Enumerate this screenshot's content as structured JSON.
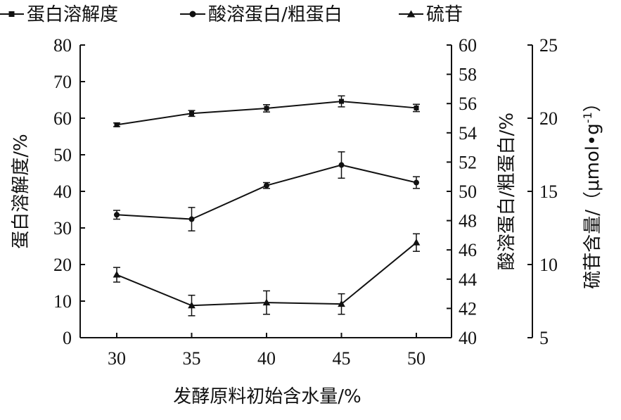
{
  "chart_data": {
    "type": "line",
    "x": [
      30,
      35,
      40,
      45,
      50
    ],
    "xlabel": "发酵原料初始含水量/%",
    "x_ticks": [
      "30",
      "35",
      "40",
      "45",
      "50"
    ],
    "legend_position": "top",
    "axes": {
      "left": {
        "label": "蛋白溶解度/%",
        "range": [
          0,
          80
        ],
        "ticks": [
          "0",
          "10",
          "20",
          "30",
          "40",
          "50",
          "60",
          "70",
          "80"
        ]
      },
      "right1": {
        "label": "酸溶蛋白/粗蛋白/%",
        "range": [
          40,
          60
        ],
        "ticks": [
          "40",
          "42",
          "44",
          "46",
          "48",
          "50",
          "52",
          "54",
          "56",
          "58",
          "60"
        ]
      },
      "right2": {
        "label_main": "硫苷含量/（μmol",
        "label_dot": "•",
        "label_g": "g",
        "label_exp": "-1",
        "label_close": "）",
        "range": [
          5,
          25
        ],
        "ticks": [
          "5",
          "10",
          "15",
          "20",
          "25"
        ]
      }
    },
    "series": [
      {
        "name": "蛋白溶解度",
        "axis": "left",
        "marker": "square",
        "values": [
          58.2,
          61.3,
          62.7,
          64.6,
          62.8
        ],
        "errors": [
          0.5,
          0.8,
          1.0,
          1.5,
          1.0
        ]
      },
      {
        "name": "酸溶蛋白/粗蛋白",
        "axis": "right1",
        "marker": "circle",
        "values": [
          48.4,
          48.1,
          50.4,
          51.8,
          50.6
        ],
        "errors": [
          0.3,
          0.8,
          0.2,
          0.9,
          0.4
        ]
      },
      {
        "name": "硫苷",
        "axis": "right2",
        "marker": "triangle",
        "values": [
          9.3,
          7.2,
          7.4,
          7.3,
          11.5
        ],
        "errors": [
          0.5,
          0.7,
          0.8,
          0.7,
          0.6
        ]
      }
    ]
  }
}
